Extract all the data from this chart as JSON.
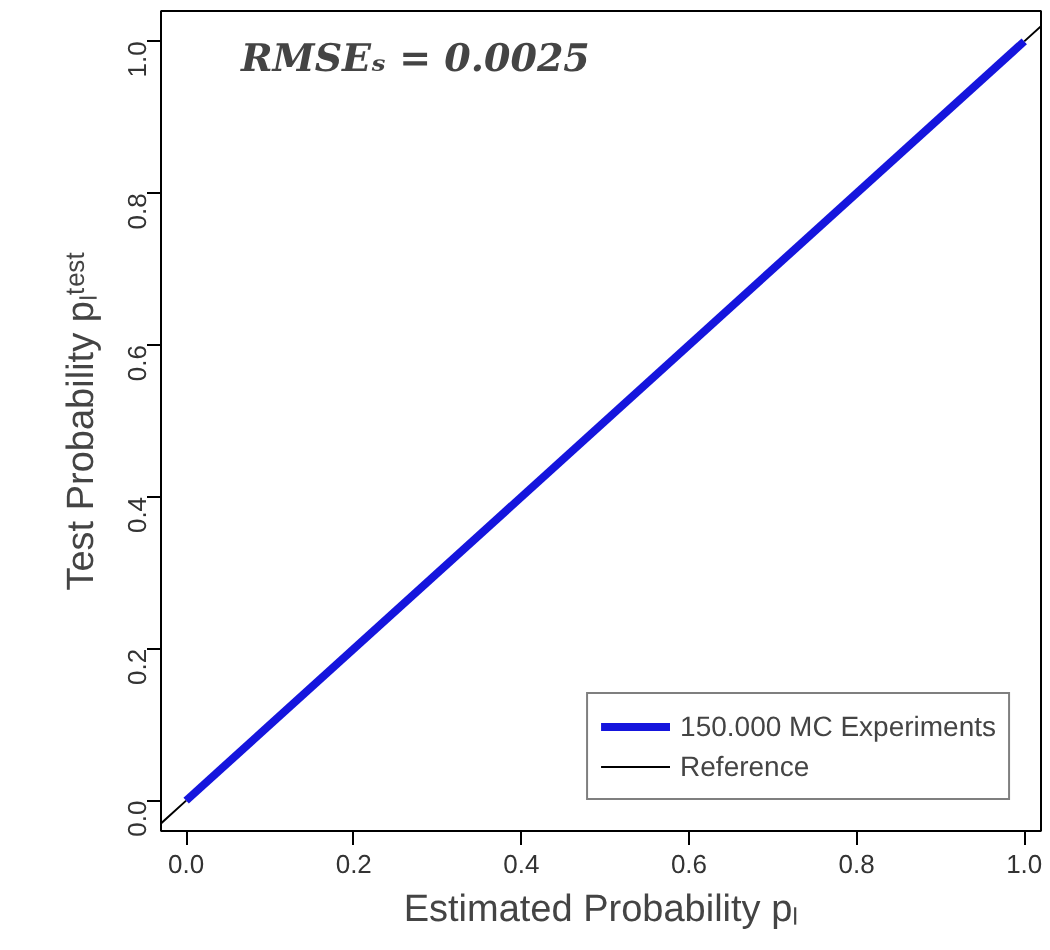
{
  "chart_data": {
    "type": "line",
    "xlabel": "Estimated Probability pₗ",
    "ylabel": "Test Probability pₗᵗᵉˢᵗ",
    "annotations": [
      "RMSEₛ = 0.0025"
    ],
    "series": [
      {
        "name": "150.000 MC Experiments",
        "color": "#1515dd",
        "x": [
          0,
          1
        ],
        "values": [
          0,
          1
        ]
      },
      {
        "name": "Reference",
        "color": "#000000",
        "x": [
          -0.03,
          0,
          0.5,
          1,
          1.02
        ],
        "values": [
          -0.03,
          0,
          null,
          1,
          1.02
        ]
      }
    ],
    "xlim": [
      -0.03,
      1.02
    ],
    "ylim": [
      -0.04,
      1.04
    ],
    "xticks": [
      {
        "value": 0,
        "label": "0.0"
      },
      0.2,
      0.4,
      0.6,
      0.8,
      {
        "value": 1,
        "label": "1.0"
      }
    ],
    "yticks": [
      {
        "value": 0,
        "label": "0.0"
      },
      0.2,
      0.4,
      0.6,
      0.8,
      {
        "value": 1,
        "label": "1.0"
      }
    ],
    "grid": false,
    "legend": "bottom right",
    "marker": "none",
    "line_style": "solid"
  }
}
